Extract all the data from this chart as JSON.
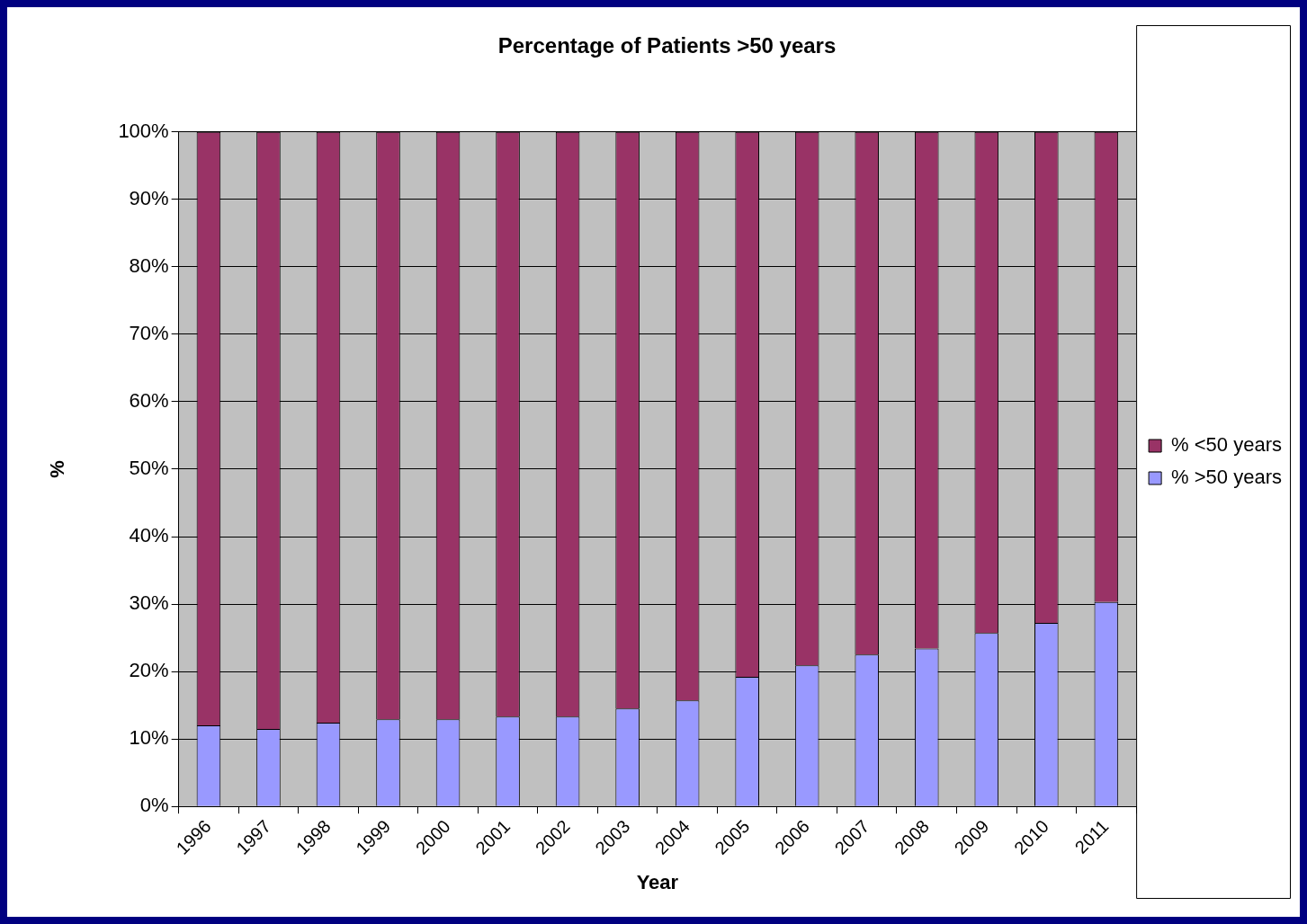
{
  "chart_data": {
    "type": "bar",
    "title": "Percentage of Patients >50 years",
    "xlabel": "Year",
    "ylabel": "%",
    "categories": [
      "1996",
      "1997",
      "1998",
      "1999",
      "2000",
      "2001",
      "2002",
      "2003",
      "2004",
      "2005",
      "2006",
      "2007",
      "2008",
      "2009",
      "2010",
      "2011"
    ],
    "stacked": true,
    "series": [
      {
        "name": "% >50 years",
        "color": "#9999ff",
        "values": [
          12,
          11.5,
          12.4,
          12.9,
          12.9,
          13.3,
          13.3,
          14.5,
          15.7,
          19.2,
          20.9,
          22.5,
          23.4,
          25.7,
          27.2,
          30.3
        ]
      },
      {
        "name": "% <50 years",
        "color": "#993366",
        "values": [
          88,
          88.5,
          87.6,
          87.1,
          87.1,
          86.7,
          86.7,
          85.5,
          84.3,
          80.8,
          79.1,
          77.5,
          76.6,
          74.3,
          72.8,
          69.7
        ]
      }
    ],
    "ylim": [
      0,
      100
    ],
    "yticks": [
      {
        "value": 0,
        "label": "0%"
      },
      {
        "value": 10,
        "label": "10%"
      },
      {
        "value": 20,
        "label": "20%"
      },
      {
        "value": 30,
        "label": "30%"
      },
      {
        "value": 40,
        "label": "40%"
      },
      {
        "value": 50,
        "label": "50%"
      },
      {
        "value": 60,
        "label": "60%"
      },
      {
        "value": 70,
        "label": "70%"
      },
      {
        "value": 80,
        "label": "80%"
      },
      {
        "value": 90,
        "label": "90%"
      },
      {
        "value": 100,
        "label": "100%"
      }
    ],
    "grid": "y",
    "legend": "right"
  }
}
